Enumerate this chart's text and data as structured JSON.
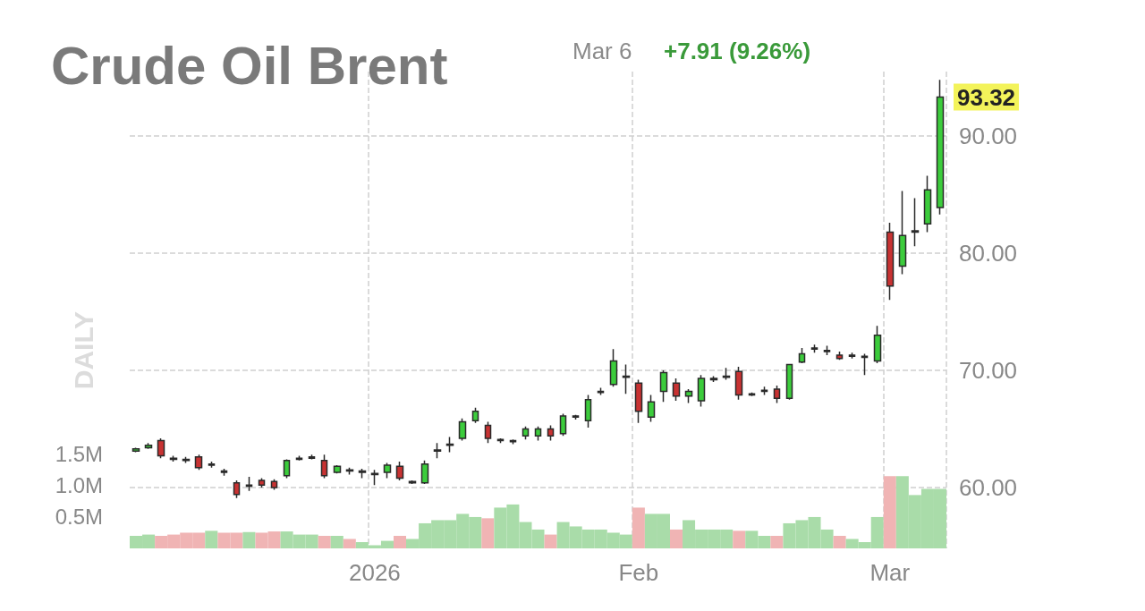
{
  "chart_data": {
    "type": "candlestick",
    "title": "Crude Oil Brent",
    "annotations": [
      "Mar 6",
      "+7.91 (9.26%)",
      "DAILY",
      "93.32"
    ],
    "categories": [
      null,
      null,
      null,
      null,
      null,
      null,
      null,
      null,
      null,
      null,
      null,
      null,
      null,
      null,
      null,
      null,
      null,
      null,
      null,
      "2026",
      null,
      null,
      null,
      null,
      null,
      null,
      null,
      null,
      null,
      null,
      null,
      null,
      null,
      null,
      null,
      null,
      null,
      null,
      null,
      null,
      "Feb",
      null,
      null,
      null,
      null,
      null,
      null,
      null,
      null,
      null,
      null,
      null,
      null,
      null,
      null,
      null,
      null,
      null,
      null,
      null,
      "Mar",
      null,
      null,
      null,
      null
    ],
    "ohlc": [
      [
        63.1,
        63.4,
        63.0,
        63.3
      ],
      [
        63.4,
        63.8,
        63.3,
        63.6
      ],
      [
        64.0,
        64.2,
        62.5,
        62.7
      ],
      [
        62.5,
        62.7,
        62.2,
        62.4
      ],
      [
        62.4,
        62.6,
        62.1,
        62.3
      ],
      [
        62.6,
        62.8,
        61.5,
        61.7
      ],
      [
        61.9,
        62.2,
        61.7,
        62.0
      ],
      [
        61.4,
        61.6,
        61.0,
        61.3
      ],
      [
        60.4,
        60.6,
        59.1,
        59.4
      ],
      [
        60.1,
        60.9,
        59.7,
        60.2
      ],
      [
        60.6,
        60.8,
        60.0,
        60.2
      ],
      [
        60.5,
        60.7,
        59.8,
        60.0
      ],
      [
        61.0,
        62.4,
        60.8,
        62.3
      ],
      [
        62.4,
        62.7,
        62.3,
        62.5
      ],
      [
        62.5,
        62.8,
        62.4,
        62.6
      ],
      [
        62.3,
        62.8,
        60.8,
        61.0
      ],
      [
        61.3,
        61.9,
        61.2,
        61.8
      ],
      [
        61.5,
        61.7,
        61.1,
        61.4
      ],
      [
        61.3,
        61.6,
        60.8,
        61.4
      ],
      [
        61.1,
        61.5,
        60.2,
        61.2
      ],
      [
        61.3,
        62.1,
        60.8,
        61.9
      ],
      [
        61.8,
        62.2,
        60.6,
        60.8
      ],
      [
        60.4,
        60.6,
        60.3,
        60.5
      ],
      [
        60.4,
        62.3,
        60.3,
        62.0
      ],
      [
        63.1,
        63.8,
        62.5,
        63.2
      ],
      [
        63.6,
        64.3,
        63.0,
        63.7
      ],
      [
        64.2,
        65.9,
        64.0,
        65.6
      ],
      [
        65.7,
        66.8,
        65.5,
        66.5
      ],
      [
        65.3,
        65.6,
        63.8,
        64.2
      ],
      [
        64.0,
        64.2,
        63.8,
        64.1
      ],
      [
        63.9,
        64.1,
        63.7,
        64.0
      ],
      [
        64.4,
        65.2,
        64.1,
        65.0
      ],
      [
        64.4,
        65.2,
        64.0,
        65.0
      ],
      [
        65.0,
        65.3,
        64.0,
        64.4
      ],
      [
        64.6,
        66.3,
        64.4,
        66.1
      ],
      [
        66.0,
        66.2,
        65.8,
        66.1
      ],
      [
        65.7,
        67.9,
        65.1,
        67.5
      ],
      [
        68.1,
        68.5,
        67.9,
        68.2
      ],
      [
        68.8,
        71.8,
        68.6,
        70.8
      ],
      [
        69.4,
        70.5,
        68.0,
        69.5
      ],
      [
        68.9,
        69.2,
        65.5,
        66.5
      ],
      [
        66.0,
        67.9,
        65.6,
        67.3
      ],
      [
        68.2,
        70.0,
        67.3,
        69.8
      ],
      [
        68.9,
        69.3,
        67.4,
        67.8
      ],
      [
        67.8,
        68.4,
        67.2,
        68.2
      ],
      [
        67.4,
        69.6,
        66.9,
        69.3
      ],
      [
        69.2,
        69.5,
        69.0,
        69.3
      ],
      [
        69.4,
        70.2,
        69.2,
        69.5
      ],
      [
        69.9,
        70.3,
        67.5,
        67.9
      ],
      [
        67.9,
        68.1,
        67.8,
        68.0
      ],
      [
        68.2,
        68.6,
        67.9,
        68.3
      ],
      [
        68.4,
        68.7,
        67.2,
        67.6
      ],
      [
        67.6,
        70.5,
        67.5,
        70.5
      ],
      [
        70.7,
        71.9,
        70.6,
        71.4
      ],
      [
        71.8,
        72.2,
        71.5,
        71.9
      ],
      [
        71.6,
        72.1,
        71.3,
        71.7
      ],
      [
        71.3,
        71.6,
        70.9,
        71.0
      ],
      [
        71.2,
        71.5,
        71.0,
        71.3
      ],
      [
        71.1,
        71.4,
        69.6,
        71.2
      ],
      [
        70.8,
        73.8,
        70.6,
        73.0
      ],
      [
        81.8,
        82.6,
        76.0,
        77.2
      ],
      [
        78.9,
        85.3,
        78.2,
        81.5
      ],
      [
        81.8,
        84.7,
        80.6,
        81.9
      ],
      [
        82.5,
        86.6,
        81.8,
        85.41
      ],
      [
        83.9,
        94.8,
        83.3,
        93.32
      ]
    ],
    "colors": [
      "#3ccc3c",
      "#3ccc3c",
      "#c83232",
      "#c83232",
      "#c83232",
      "#c83232",
      "#333333",
      "#c83232",
      "#c83232",
      "#3ccc3c",
      "#c83232",
      "#c83232",
      "#3ccc3c",
      "#3ccc3c",
      "#3ccc3c",
      "#c83232",
      "#3ccc3c",
      "#c83232",
      "#333333",
      "#333333",
      "#3ccc3c",
      "#c83232",
      "#333333",
      "#3ccc3c",
      "#3ccc3c",
      "#3ccc3c",
      "#3ccc3c",
      "#3ccc3c",
      "#c83232",
      "#333333",
      "#3ccc3c",
      "#3ccc3c",
      "#3ccc3c",
      "#c83232",
      "#3ccc3c",
      "#333333",
      "#3ccc3c",
      "#3ccc3c",
      "#3ccc3c",
      "#333333",
      "#c83232",
      "#3ccc3c",
      "#3ccc3c",
      "#c83232",
      "#3ccc3c",
      "#3ccc3c",
      "#333333",
      "#333333",
      "#c83232",
      "#333333",
      "#333333",
      "#c83232",
      "#3ccc3c",
      "#3ccc3c",
      "#333333",
      "#333333",
      "#c83232",
      "#333333",
      "#333333",
      "#3ccc3c",
      "#c83232",
      "#3ccc3c",
      "#3ccc3c",
      "#3ccc3c",
      "#3ccc3c"
    ],
    "series": [
      {
        "type": "bar",
        "axis": "y2",
        "values": [
          0.2,
          0.22,
          0.2,
          0.22,
          0.25,
          0.25,
          0.28,
          0.25,
          0.25,
          0.26,
          0.25,
          0.27,
          0.27,
          0.22,
          0.22,
          0.2,
          0.2,
          0.15,
          0.1,
          0.05,
          0.12,
          0.2,
          0.15,
          0.4,
          0.45,
          0.45,
          0.55,
          0.5,
          0.48,
          0.65,
          0.7,
          0.42,
          0.3,
          0.22,
          0.42,
          0.35,
          0.3,
          0.3,
          0.25,
          0.22,
          0.65,
          0.55,
          0.55,
          0.3,
          0.45,
          0.3,
          0.3,
          0.3,
          0.28,
          0.28,
          0.2,
          0.2,
          0.4,
          0.45,
          0.5,
          0.3,
          0.2,
          0.15,
          0.1,
          0.5,
          1.15,
          1.15,
          0.85,
          0.95,
          0.95
        ],
        "colors": [
          "#a9dca9",
          "#a9dca9",
          "#f0b4b4",
          "#f0b4b4",
          "#f0b4b4",
          "#f0b4b4",
          "#a9dca9",
          "#f0b4b4",
          "#f0b4b4",
          "#a9dca9",
          "#f0b4b4",
          "#f0b4b4",
          "#a9dca9",
          "#a9dca9",
          "#a9dca9",
          "#f0b4b4",
          "#a9dca9",
          "#f0b4b4",
          "#a9dca9",
          "#a9dca9",
          "#a9dca9",
          "#f0b4b4",
          "#a9dca9",
          "#a9dca9",
          "#a9dca9",
          "#a9dca9",
          "#a9dca9",
          "#a9dca9",
          "#f0b4b4",
          "#a9dca9",
          "#a9dca9",
          "#a9dca9",
          "#a9dca9",
          "#f0b4b4",
          "#a9dca9",
          "#a9dca9",
          "#a9dca9",
          "#a9dca9",
          "#a9dca9",
          "#a9dca9",
          "#f0b4b4",
          "#a9dca9",
          "#a9dca9",
          "#f0b4b4",
          "#a9dca9",
          "#a9dca9",
          "#a9dca9",
          "#a9dca9",
          "#f0b4b4",
          "#a9dca9",
          "#a9dca9",
          "#f0b4b4",
          "#a9dca9",
          "#a9dca9",
          "#a9dca9",
          "#a9dca9",
          "#f0b4b4",
          "#a9dca9",
          "#a9dca9",
          "#a9dca9",
          "#f0b4b4",
          "#a9dca9",
          "#a9dca9",
          "#a9dca9",
          "#a9dca9"
        ]
      }
    ],
    "ylim": [
      54.8,
      95.5
    ],
    "yticks": [
      {
        "value": 60,
        "label": "60.00"
      },
      {
        "value": 70,
        "label": "70.00"
      },
      {
        "value": 80,
        "label": "80.00"
      },
      {
        "value": 90,
        "label": "90.00"
      }
    ],
    "y2lim": [
      0,
      7.6
    ],
    "y2ticks": [
      {
        "value": 0.5,
        "label": "0.5M"
      },
      {
        "value": 1.0,
        "label": "1.0M"
      },
      {
        "value": 1.5,
        "label": "1.5M"
      }
    ],
    "grid": true
  }
}
